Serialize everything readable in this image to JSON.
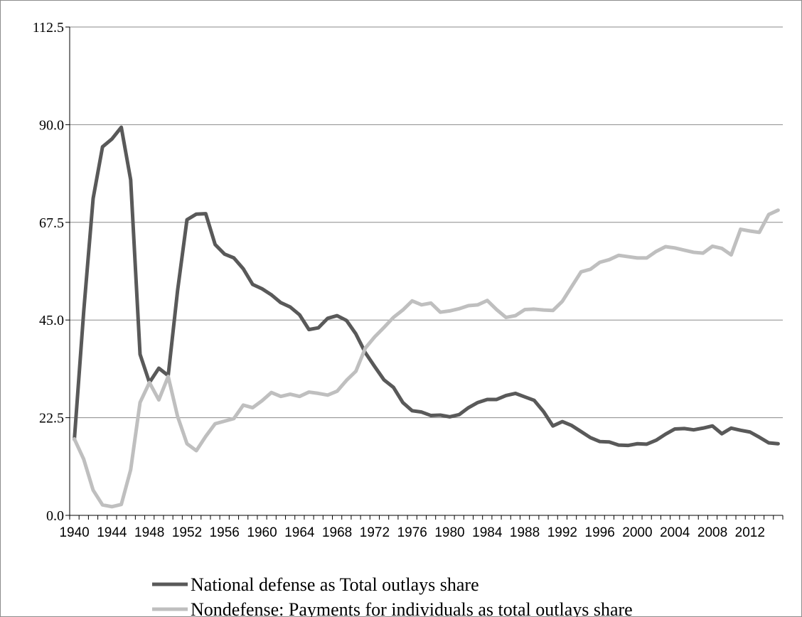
{
  "chart_data": {
    "type": "line",
    "title": "",
    "xlabel": "",
    "ylabel": "",
    "ylim": [
      0,
      112.5
    ],
    "yticks": [
      "0.0",
      "22.5",
      "45.0",
      "67.5",
      "90.0",
      "112.5"
    ],
    "xlim": [
      1940,
      2015
    ],
    "x_tick_labels": [
      "1940",
      "1944",
      "1948",
      "1952",
      "1956",
      "1960",
      "1964",
      "1968",
      "1972",
      "1976",
      "1980",
      "1984",
      "1988",
      "1992",
      "1996",
      "2000",
      "2004",
      "2008",
      "2012"
    ],
    "grid": "horizontal",
    "legend_position": "bottom",
    "x": [
      1940,
      1941,
      1942,
      1943,
      1944,
      1945,
      1946,
      1947,
      1948,
      1949,
      1950,
      1951,
      1952,
      1953,
      1954,
      1955,
      1956,
      1957,
      1958,
      1959,
      1960,
      1961,
      1962,
      1963,
      1964,
      1965,
      1966,
      1967,
      1968,
      1969,
      1970,
      1971,
      1972,
      1973,
      1974,
      1975,
      1976,
      1977,
      1978,
      1979,
      1980,
      1981,
      1982,
      1983,
      1984,
      1985,
      1986,
      1987,
      1988,
      1989,
      1990,
      1991,
      1992,
      1993,
      1994,
      1995,
      1996,
      1997,
      1998,
      1999,
      2000,
      2001,
      2002,
      2003,
      2004,
      2005,
      2006,
      2007,
      2008,
      2009,
      2010,
      2011,
      2012,
      2013,
      2014,
      2015
    ],
    "series": [
      {
        "name": "National defense as Total outlays share",
        "color": "#595959",
        "values": [
          17.5,
          47.1,
          73.0,
          84.9,
          86.7,
          89.4,
          77.3,
          37.1,
          30.6,
          33.9,
          32.2,
          51.8,
          68.1,
          69.4,
          69.5,
          62.4,
          60.2,
          59.3,
          56.8,
          53.2,
          52.2,
          50.8,
          49.0,
          48.0,
          46.2,
          42.8,
          43.2,
          45.4,
          46.0,
          44.9,
          41.8,
          37.5,
          34.3,
          31.2,
          29.5,
          26.0,
          24.1,
          23.8,
          23.0,
          23.1,
          22.7,
          23.2,
          24.8,
          26.0,
          26.7,
          26.7,
          27.6,
          28.1,
          27.3,
          26.5,
          23.9,
          20.6,
          21.6,
          20.7,
          19.3,
          17.9,
          17.0,
          16.9,
          16.2,
          16.1,
          16.5,
          16.4,
          17.3,
          18.7,
          19.9,
          20.0,
          19.7,
          20.1,
          20.6,
          18.8,
          20.1,
          19.6,
          19.2,
          18.0,
          16.7,
          16.5
        ]
      },
      {
        "name": "Nondefense: Payments for individuals as total outlays share",
        "color": "#bfbfbf",
        "values": [
          17.6,
          12.9,
          5.8,
          2.4,
          2.0,
          2.5,
          10.5,
          26.0,
          30.6,
          26.6,
          32.0,
          22.8,
          16.5,
          14.9,
          18.2,
          21.1,
          21.7,
          22.3,
          25.4,
          24.8,
          26.4,
          28.3,
          27.4,
          27.9,
          27.4,
          28.4,
          28.1,
          27.7,
          28.6,
          31.1,
          33.2,
          38.5,
          41.1,
          43.3,
          45.6,
          47.3,
          49.4,
          48.5,
          48.9,
          46.8,
          47.1,
          47.6,
          48.3,
          48.5,
          49.5,
          47.4,
          45.6,
          46.0,
          47.4,
          47.5,
          47.3,
          47.2,
          49.3,
          52.7,
          56.1,
          56.7,
          58.3,
          58.9,
          59.9,
          59.6,
          59.3,
          59.3,
          60.8,
          61.9,
          61.6,
          61.1,
          60.6,
          60.4,
          62.0,
          61.5,
          60.0,
          65.9,
          65.5,
          65.2,
          69.3,
          70.3
        ]
      }
    ]
  }
}
